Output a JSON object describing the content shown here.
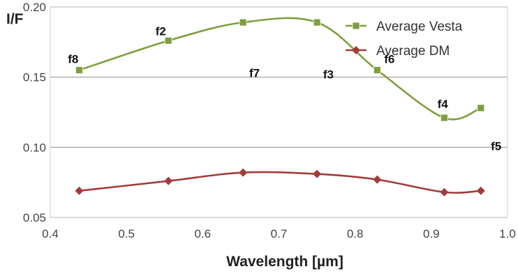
{
  "chart_data": {
    "type": "line",
    "xlabel": "Wavelength [µm]",
    "ylabel": "I/F",
    "xlim": [
      0.4,
      1.0
    ],
    "ylim": [
      0.05,
      0.2
    ],
    "x_ticks": [
      "0.4",
      "0.5",
      "0.6",
      "0.7",
      "0.8",
      "0.9",
      "1.0"
    ],
    "y_ticks": [
      "0.05",
      "0.10",
      "0.15",
      "0.20"
    ],
    "grid": "horizontal",
    "legend_position": "top-right",
    "series": [
      {
        "name": "Average Vesta",
        "color": "#7f9f3e",
        "marker": "square",
        "x": [
          0.438,
          0.555,
          0.653,
          0.75,
          0.829,
          0.917,
          0.965
        ],
        "y": [
          0.155,
          0.176,
          0.189,
          0.189,
          0.155,
          0.121,
          0.128
        ]
      },
      {
        "name": "Average DM",
        "color": "#a33b3b",
        "marker": "diamond",
        "x": [
          0.438,
          0.555,
          0.653,
          0.75,
          0.829,
          0.917,
          0.965
        ],
        "y": [
          0.069,
          0.076,
          0.082,
          0.081,
          0.077,
          0.068,
          0.069
        ]
      }
    ],
    "annotations": [
      {
        "text": "f8",
        "x": 0.43,
        "y": 0.16
      },
      {
        "text": "f2",
        "x": 0.545,
        "y": 0.18
      },
      {
        "text": "f7",
        "x": 0.668,
        "y": 0.15
      },
      {
        "text": "f3",
        "x": 0.765,
        "y": 0.149
      },
      {
        "text": "f6",
        "x": 0.845,
        "y": 0.16
      },
      {
        "text": "f4",
        "x": 0.915,
        "y": 0.128
      },
      {
        "text": "f5",
        "x": 0.985,
        "y": 0.098
      }
    ]
  }
}
